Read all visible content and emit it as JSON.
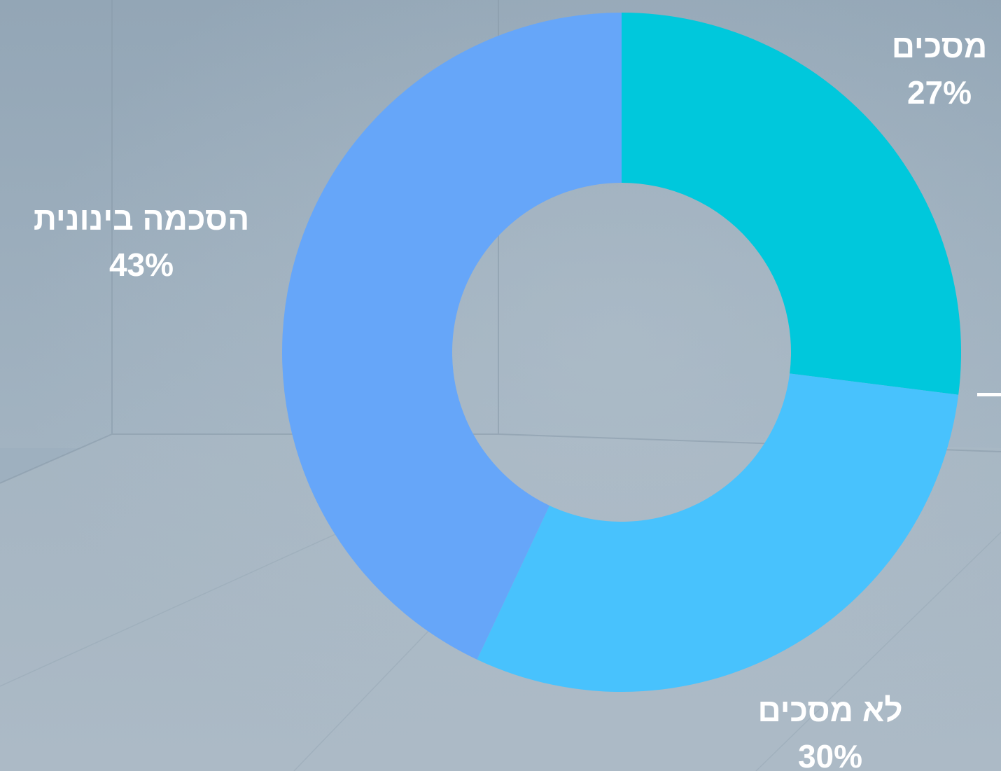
{
  "chart_data": {
    "type": "pie",
    "donut": true,
    "title": "",
    "start_angle_deg": 0,
    "direction": "clockwise",
    "slices": [
      {
        "label": "מסכים",
        "value": 27,
        "value_label": "27%",
        "color": "#00c8dc"
      },
      {
        "label": "לא מסכים",
        "value": 30,
        "value_label": "30%",
        "color": "#48c2fd"
      },
      {
        "label": "הסכמה בינונית",
        "value": 43,
        "value_label": "43%",
        "color": "#66a6f9"
      }
    ],
    "label_color": "#ffffff"
  },
  "background": {
    "style": "concrete-room",
    "base_color": "#9eb0bf",
    "floor_color": "#aab8c4"
  }
}
